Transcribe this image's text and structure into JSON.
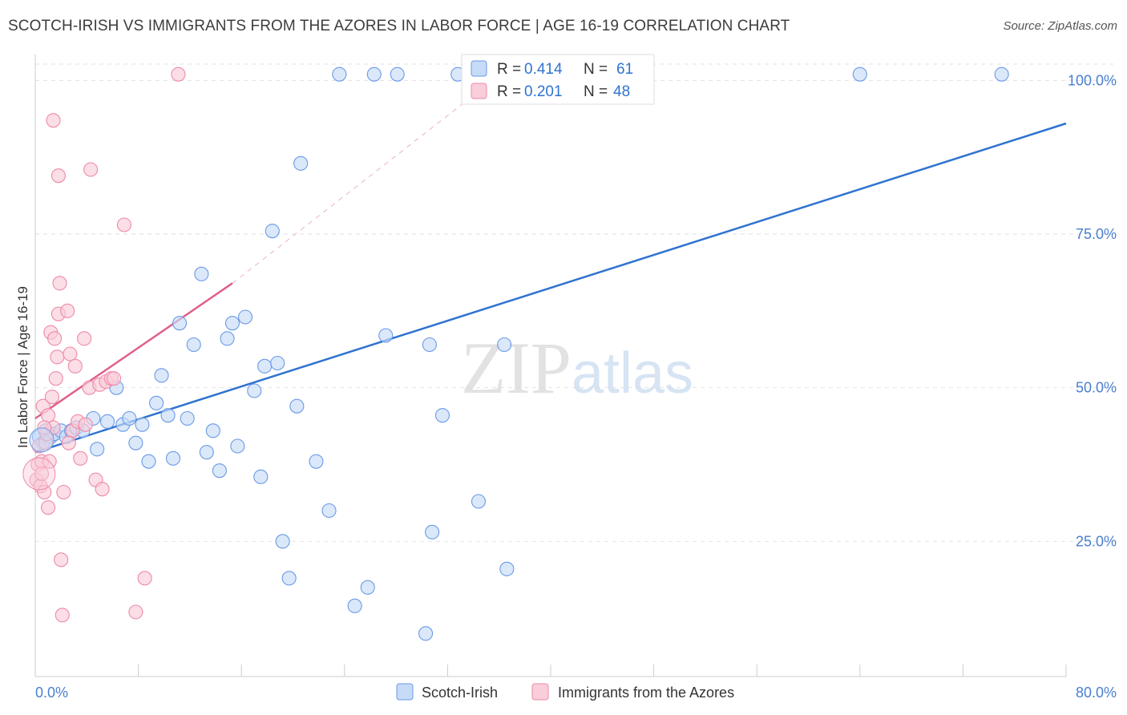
{
  "chart_data": {
    "type": "scatter",
    "title": "SCOTCH-IRISH VS IMMIGRANTS FROM THE AZORES IN LABOR FORCE | AGE 16-19 CORRELATION CHART",
    "source": "Source: ZipAtlas.com",
    "xlabel": "",
    "ylabel": "In Labor Force | Age 16-19",
    "xlim": [
      0,
      80
    ],
    "ylim": [
      3,
      105
    ],
    "x_tick_labels": [
      "0.0%",
      "80.0%"
    ],
    "y_ticks": [
      25,
      50,
      75,
      100
    ],
    "y_tick_labels": [
      "25.0%",
      "50.0%",
      "75.0%",
      "100.0%"
    ],
    "grid": true,
    "watermark": "ZIPatlas",
    "legend_position": "top-center",
    "series": [
      {
        "name": "Scotch-Irish",
        "color": "#6b9ae6",
        "fill": "#c6dbf7",
        "line_color": "#2f73d0",
        "R": "0.414",
        "N": "61",
        "trend": {
          "x1": 0,
          "y1": 39.5,
          "x2": 80,
          "y2": 93
        },
        "points": [
          [
            0.3,
            42
          ],
          [
            0.6,
            41
          ],
          [
            0.8,
            43
          ],
          [
            1.2,
            42
          ],
          [
            1.5,
            42.5
          ],
          [
            2.0,
            43
          ],
          [
            2.4,
            42
          ],
          [
            2.8,
            43
          ],
          [
            3.2,
            43.5
          ],
          [
            3.7,
            43
          ],
          [
            4.5,
            45
          ],
          [
            4.8,
            40
          ],
          [
            5.6,
            44.5
          ],
          [
            6.3,
            50
          ],
          [
            6.8,
            44
          ],
          [
            7.3,
            45
          ],
          [
            7.8,
            41
          ],
          [
            8.3,
            44
          ],
          [
            8.8,
            38
          ],
          [
            9.4,
            47.5
          ],
          [
            9.8,
            52
          ],
          [
            10.3,
            45.5
          ],
          [
            10.7,
            38.5
          ],
          [
            11.2,
            60.5
          ],
          [
            11.8,
            45
          ],
          [
            12.3,
            57
          ],
          [
            12.9,
            68.5
          ],
          [
            13.3,
            39.5
          ],
          [
            13.8,
            43
          ],
          [
            14.3,
            36.5
          ],
          [
            14.9,
            58
          ],
          [
            15.3,
            60.5
          ],
          [
            15.7,
            40.5
          ],
          [
            16.3,
            61.5
          ],
          [
            17.0,
            49.5
          ],
          [
            17.5,
            35.5
          ],
          [
            17.8,
            53.5
          ],
          [
            18.4,
            75.5
          ],
          [
            18.8,
            54
          ],
          [
            19.2,
            25
          ],
          [
            19.7,
            19
          ],
          [
            20.3,
            47
          ],
          [
            20.6,
            86.5
          ],
          [
            21.8,
            38
          ],
          [
            22.8,
            30
          ],
          [
            23.6,
            101
          ],
          [
            24.8,
            14.5
          ],
          [
            25.8,
            17.5
          ],
          [
            26.3,
            101
          ],
          [
            27.2,
            58.5
          ],
          [
            28.1,
            101
          ],
          [
            30.3,
            10
          ],
          [
            30.6,
            57
          ],
          [
            30.8,
            26.5
          ],
          [
            31.6,
            45.5
          ],
          [
            32.8,
            101
          ],
          [
            34.4,
            31.5
          ],
          [
            36.4,
            57
          ],
          [
            36.6,
            20.5
          ],
          [
            64.0,
            101
          ],
          [
            75.0,
            101
          ]
        ]
      },
      {
        "name": "Immigrants from the Azores",
        "color": "#ee8aa8",
        "fill": "#f9cdd9",
        "line_color": "#e0608a",
        "R": "0.201",
        "N": "48",
        "trend": {
          "x1": 0,
          "y1": 45,
          "x2": 15.3,
          "y2": 67
        },
        "trend_dashed": {
          "x1": 15.3,
          "y1": 67,
          "x2": 35.5,
          "y2": 100
        },
        "points": [
          [
            0.1,
            35
          ],
          [
            0.2,
            37.5
          ],
          [
            0.3,
            40.5
          ],
          [
            0.4,
            34
          ],
          [
            0.5,
            38
          ],
          [
            0.6,
            47
          ],
          [
            0.7,
            33
          ],
          [
            0.8,
            41
          ],
          [
            0.9,
            42.5
          ],
          [
            1.0,
            30.5
          ],
          [
            1.1,
            38
          ],
          [
            1.2,
            59
          ],
          [
            1.3,
            48.5
          ],
          [
            1.4,
            43.5
          ],
          [
            1.5,
            58
          ],
          [
            1.6,
            51.5
          ],
          [
            1.7,
            55
          ],
          [
            1.8,
            62
          ],
          [
            1.9,
            67
          ],
          [
            2.0,
            22
          ],
          [
            2.1,
            13
          ],
          [
            2.2,
            33
          ],
          [
            2.5,
            62.5
          ],
          [
            2.7,
            55.5
          ],
          [
            2.9,
            43
          ],
          [
            3.1,
            53.5
          ],
          [
            3.3,
            44.5
          ],
          [
            3.5,
            38.5
          ],
          [
            3.8,
            58
          ],
          [
            4.2,
            50
          ],
          [
            4.3,
            85.5
          ],
          [
            4.7,
            35
          ],
          [
            5.0,
            50.5
          ],
          [
            5.2,
            33.5
          ],
          [
            5.5,
            51
          ],
          [
            5.9,
            51.5
          ],
          [
            6.1,
            51.5
          ],
          [
            6.9,
            76.5
          ],
          [
            7.8,
            13.5
          ],
          [
            8.5,
            19
          ],
          [
            11.1,
            101
          ],
          [
            1.4,
            93.5
          ],
          [
            1.8,
            84.5
          ],
          [
            2.6,
            41
          ],
          [
            1.0,
            45.5
          ],
          [
            0.7,
            43.5
          ],
          [
            0.5,
            36
          ],
          [
            3.9,
            44
          ]
        ]
      }
    ],
    "legend_entries": [
      "Scotch-Irish",
      "Immigrants from the Azores"
    ],
    "r_label": "R =",
    "n_label": "N ="
  }
}
